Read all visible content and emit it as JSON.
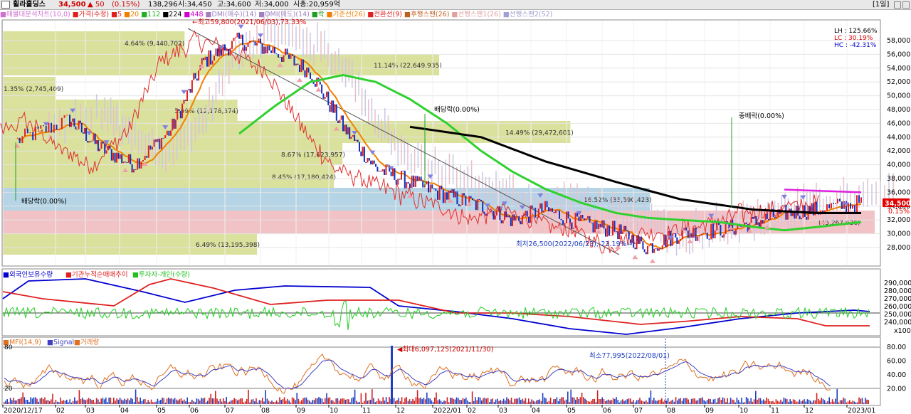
{
  "titlebar": {
    "name": "휠라홀딩스",
    "price": "34,500",
    "change": "▲ 50",
    "change_pct": "(0.15%)",
    "volume": "138,296",
    "open": "시:34,450",
    "high": "고:34,600",
    "low": "저:34,000",
    "mktcap": "시총:20,959억",
    "period": "[1일]"
  },
  "legend": [
    {
      "label": "■매물대분석차트(10,0)",
      "color": "#d070d0"
    },
    {
      "label": "■가격(수정)",
      "color": "#e02020"
    },
    {
      "label": "■5",
      "color": "#e02020"
    },
    {
      "label": "■20",
      "color": "#f08000"
    },
    {
      "label": "■112",
      "color": "#20b020"
    },
    {
      "label": "■224",
      "color": "#000000"
    },
    {
      "label": "■448",
      "color": "#d000d0"
    },
    {
      "label": "■DMI(매수)(14)",
      "color": "#a080c0"
    },
    {
      "label": "■DMI(매도)(14)",
      "color": "#a080c0"
    },
    {
      "label": "■락",
      "color": "#20a020"
    },
    {
      "label": "■기준선(26)",
      "color": "#f08000"
    },
    {
      "label": "■전환선(9)",
      "color": "#e02020"
    },
    {
      "label": "■후행스팬(26)",
      "color": "#c06020"
    },
    {
      "label": "■선행스팬1(26)",
      "color": "#e0a0a0"
    },
    {
      "label": "■선행스팬2(52)",
      "color": "#a0a0d0"
    }
  ],
  "info_box": {
    "lh": "LH : 125.66%",
    "lc": "LC :  30.19%",
    "hc": "HC : -42.31%"
  },
  "price_axis": [
    "58,000",
    "56,000",
    "54,000",
    "52,000",
    "50,000",
    "48,000",
    "46,000",
    "44,000",
    "42,000",
    "40,000",
    "38,000",
    "36,000",
    "34,000",
    "32,000",
    "30,000",
    "28,000"
  ],
  "current_price": {
    "value": "34,500",
    "pct": "0.15%"
  },
  "volume_profile": [
    {
      "label": "4.64% (9,440,702)",
      "pct": 4.64
    },
    {
      "label": "11.14% (22,649,935)",
      "pct": 11.14
    },
    {
      "label": "1.35% (2,745,409)",
      "pct": 1.35
    },
    {
      "label": "5.99% (12,178,374)",
      "pct": 5.99
    },
    {
      "label": "14.49% (29,472,601)",
      "pct": 14.49
    },
    {
      "label": "8.67% (17,623,957)",
      "pct": 8.67
    },
    {
      "label": "8.45% (17,180,424)",
      "pct": 8.45
    },
    {
      "label": "16.52% (33,590,423)",
      "pct": 16.52
    },
    {
      "label": "(45,267,626)",
      "pct": 22.26
    },
    {
      "label": "6.49% (13,195,398)",
      "pct": 6.49
    }
  ],
  "annotations": {
    "high": "최고59,800(2021/06/03),73.33%",
    "low": "최저26,500(2022/06/23),-23.19%",
    "div1": "배당락(0.00%)",
    "div2": "배당락(0.00%)",
    "div3": "중배락(0.00%)"
  },
  "panel2": {
    "legend": [
      {
        "label": "■외국인보유수량",
        "color": "#0000d0"
      },
      {
        "label": "■기관누적순매매추이",
        "color": "#e02020"
      },
      {
        "label": "■투자자-개인(수량)",
        "color": "#20c020"
      }
    ],
    "axis": [
      "290,000",
      "280,000",
      "270,000",
      "260,000",
      "250,000",
      "240,000"
    ],
    "unit": "x100"
  },
  "panel3": {
    "legend": [
      {
        "label": "■MFI(14,9)",
        "color": "#e07020"
      },
      {
        "label": "■Signal",
        "color": "#4040c0"
      },
      {
        "label": "■거래량",
        "color": "#e07020"
      }
    ],
    "axis": [
      "80.00",
      "60.00",
      "40.00",
      "20.00"
    ],
    "left_marks": [
      "80",
      "20"
    ],
    "max_label": "최대6,097,125(2021/11/30)",
    "min_label": "최소77,995(2022/08/01)"
  },
  "x_axis": [
    "2020/12/17",
    "02",
    "03",
    "04",
    "05",
    "06",
    "07",
    "08",
    "09",
    "10",
    "11",
    "12",
    "2022/01",
    "02",
    "03",
    "04",
    "05",
    "06",
    "07",
    "08",
    "09",
    "10",
    "11",
    "12",
    "2023/01"
  ],
  "chart_data": {
    "type": "line",
    "title": "",
    "y_range": [
      27000,
      59800
    ],
    "series": [
      {
        "name": "가격(수정)",
        "x": [
          "2020/12",
          "2021/01",
          "2021/02",
          "2021/03",
          "2021/04",
          "2021/05",
          "2021/06",
          "2021/07",
          "2021/08",
          "2021/09",
          "2021/10",
          "2021/11",
          "2021/12",
          "2022/01",
          "2022/02",
          "2022/03",
          "2022/04",
          "2022/05",
          "2022/06",
          "2022/07",
          "2022/08",
          "2022/09",
          "2022/10",
          "2022/11",
          "2022/12"
        ],
        "values": [
          43500,
          46500,
          42500,
          40000,
          45000,
          55000,
          58000,
          56500,
          53500,
          45500,
          39500,
          37500,
          35500,
          34000,
          32000,
          33500,
          31500,
          30500,
          28000,
          30000,
          30500,
          31500,
          33000,
          33500,
          34500
        ]
      },
      {
        "name": "112",
        "x": [
          "2021/06",
          "2021/07",
          "2021/08",
          "2021/09",
          "2021/10",
          "2021/11",
          "2021/12",
          "2022/01",
          "2022/02",
          "2022/03",
          "2022/04",
          "2022/05",
          "2022/06",
          "2022/07",
          "2022/08",
          "2022/09",
          "2022/10",
          "2022/11",
          "2022/12"
        ],
        "values": [
          44500,
          48500,
          52000,
          53000,
          52000,
          49500,
          46000,
          42000,
          39000,
          36500,
          34500,
          33000,
          32300,
          32000,
          31700,
          31000,
          30500,
          31000,
          31700
        ]
      },
      {
        "name": "224",
        "x": [
          "2021/11",
          "2022/01",
          "2022/03",
          "2022/05",
          "2022/07",
          "2022/09",
          "2022/11",
          "2022/12"
        ],
        "values": [
          45500,
          44000,
          40500,
          37500,
          35000,
          33500,
          33000,
          33000
        ]
      },
      {
        "name": "448",
        "x": [
          "2022/10",
          "2022/12"
        ],
        "values": [
          36400,
          36000
        ]
      }
    ]
  }
}
